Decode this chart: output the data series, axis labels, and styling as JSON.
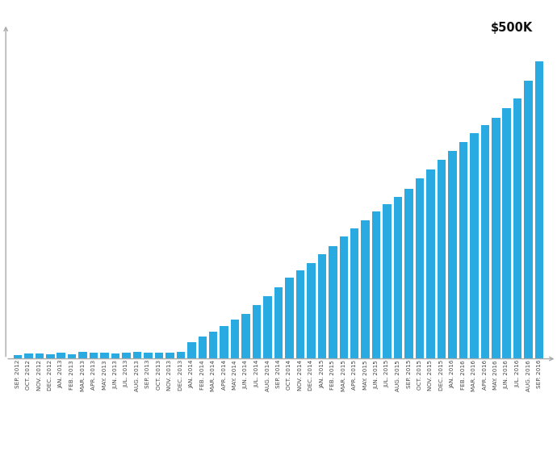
{
  "labels": [
    "SEP. 2012",
    "OCT. 2012",
    "NOV. 2012",
    "DEC. 2012",
    "JAN. 2013",
    "FEB. 2013",
    "MAR. 2013",
    "APR. 2013",
    "MAY. 2013",
    "JUN. 2013",
    "JUL. 2013",
    "AUG. 2013",
    "SEP. 2013",
    "OCT. 2013",
    "NOV. 2013",
    "DEC. 2013",
    "JAN. 2014",
    "FEB. 2014",
    "MAR. 2014",
    "APR. 2014",
    "MAY. 2014",
    "JUN. 2014",
    "JUL. 2014",
    "AUG. 2014",
    "SEP. 2014",
    "OCT. 2014",
    "NOV. 2014",
    "DEC. 2014",
    "JAN. 2015",
    "FEB. 2015",
    "MAR. 2015",
    "APR. 2015",
    "MAY. 2015",
    "JUN. 2015",
    "JUL. 2015",
    "AUG. 2015",
    "SEP. 2015",
    "OCT. 2015",
    "NOV. 2015",
    "DEC. 2015",
    "JAN. 2016",
    "FEB. 2016",
    "MAR. 2016",
    "APR. 2016",
    "MAY. 2016",
    "JUN. 2016",
    "JUL. 2016",
    "AUG. 2016",
    "SEP. 2016"
  ],
  "values": [
    6000,
    9000,
    8500,
    7000,
    9500,
    8000,
    11000,
    10500,
    10000,
    9000,
    10000,
    11500,
    10500,
    10000,
    10500,
    12000,
    28000,
    36000,
    44000,
    54000,
    64000,
    74000,
    88000,
    103000,
    118000,
    133000,
    146000,
    158000,
    172000,
    185000,
    202000,
    215000,
    228000,
    242000,
    255000,
    267000,
    280000,
    297000,
    312000,
    327000,
    342000,
    357000,
    372000,
    385000,
    397000,
    412000,
    428000,
    458000,
    490000
  ],
  "bar_color": "#29ABE2",
  "annotation_text": "$500K",
  "ylim": [
    0,
    530000
  ],
  "background_color": "#ffffff",
  "axis_color": "#aaaaaa",
  "label_fontsize": 5.2,
  "annotation_fontsize": 10.5,
  "fig_width": 6.9,
  "fig_height": 5.7,
  "dpi": 100
}
